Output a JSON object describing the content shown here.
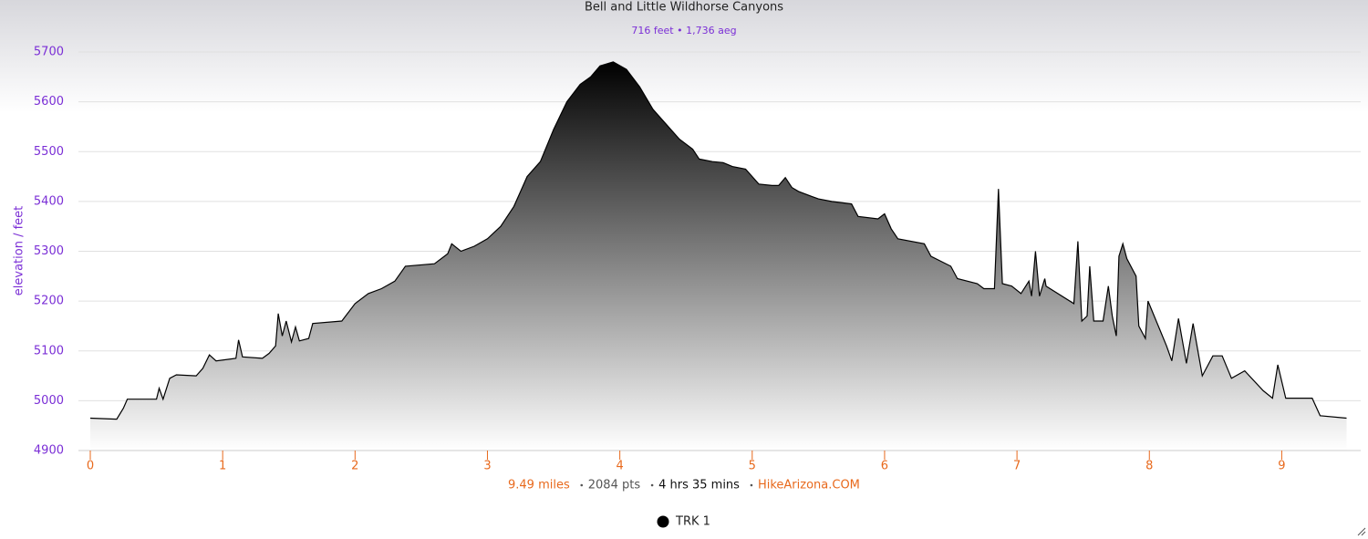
{
  "chart_data": {
    "type": "area",
    "title": "Bell and Little Wildhorse Canyons",
    "subtitle": "716 feet • 1,736 aeg",
    "y_label": "elevation / feet",
    "footer": [
      "9.49 miles",
      "2084 pts",
      "4 hrs 35 mins",
      "HikeArizona.COM"
    ],
    "xlim": [
      0,
      9.5
    ],
    "xticks": [
      0,
      1,
      2,
      3,
      4,
      5,
      6,
      7,
      8,
      9
    ],
    "ylim": [
      4900,
      5700
    ],
    "yticks": [
      4900,
      5000,
      5100,
      5200,
      5300,
      5400,
      5500,
      5600,
      5700
    ],
    "grid": true,
    "series": [
      {
        "name": "TRK 1",
        "color": "#000000",
        "x": [
          0,
          0.2,
          0.25,
          0.28,
          0.5,
          0.52,
          0.55,
          0.6,
          0.65,
          0.8,
          0.85,
          0.9,
          0.95,
          1.1,
          1.12,
          1.15,
          1.3,
          1.35,
          1.4,
          1.42,
          1.45,
          1.48,
          1.52,
          1.55,
          1.58,
          1.65,
          1.68,
          1.9,
          2.0,
          2.1,
          2.2,
          2.3,
          2.38,
          2.6,
          2.7,
          2.73,
          2.8,
          2.9,
          3.0,
          3.1,
          3.2,
          3.25,
          3.3,
          3.4,
          3.5,
          3.6,
          3.7,
          3.78,
          3.85,
          3.95,
          4.05,
          4.15,
          4.25,
          4.35,
          4.45,
          4.55,
          4.6,
          4.7,
          4.78,
          4.85,
          4.95,
          5.05,
          5.15,
          5.2,
          5.25,
          5.3,
          5.35,
          5.45,
          5.5,
          5.6,
          5.75,
          5.8,
          5.95,
          6.0,
          6.05,
          6.1,
          6.3,
          6.35,
          6.5,
          6.55,
          6.7,
          6.75,
          6.83,
          6.86,
          6.89,
          6.96,
          7.03,
          7.09,
          7.11,
          7.14,
          7.17,
          7.21,
          7.22,
          7.43,
          7.46,
          7.49,
          7.53,
          7.55,
          7.58,
          7.65,
          7.69,
          7.72,
          7.75,
          7.77,
          7.8,
          7.83,
          7.9,
          7.92,
          7.97,
          7.99,
          8.13,
          8.17,
          8.22,
          8.28,
          8.33,
          8.4,
          8.48,
          8.55,
          8.62,
          8.72,
          8.86,
          8.93,
          8.97,
          9.03,
          9.23,
          9.29,
          9.49
        ],
        "values": [
          4965,
          4963,
          4985,
          5003,
          5003,
          5025,
          5003,
          5045,
          5052,
          5050,
          5065,
          5092,
          5080,
          5085,
          5122,
          5088,
          5085,
          5095,
          5110,
          5175,
          5130,
          5160,
          5118,
          5148,
          5120,
          5125,
          5155,
          5160,
          5195,
          5215,
          5225,
          5240,
          5270,
          5275,
          5295,
          5315,
          5300,
          5310,
          5325,
          5350,
          5390,
          5420,
          5450,
          5480,
          5545,
          5600,
          5635,
          5650,
          5672,
          5680,
          5665,
          5630,
          5585,
          5555,
          5525,
          5505,
          5485,
          5480,
          5478,
          5470,
          5465,
          5435,
          5432,
          5432,
          5448,
          5428,
          5420,
          5410,
          5405,
          5400,
          5395,
          5370,
          5365,
          5375,
          5345,
          5325,
          5315,
          5290,
          5270,
          5245,
          5235,
          5225,
          5225,
          5425,
          5235,
          5230,
          5215,
          5240,
          5210,
          5300,
          5210,
          5245,
          5230,
          5195,
          5320,
          5160,
          5170,
          5270,
          5160,
          5160,
          5230,
          5170,
          5130,
          5290,
          5315,
          5285,
          5250,
          5150,
          5125,
          5200,
          5110,
          5080,
          5165,
          5075,
          5155,
          5050,
          5090,
          5090,
          5045,
          5060,
          5020,
          5005,
          5072,
          5005,
          5005,
          4970,
          4965
        ]
      }
    ]
  }
}
